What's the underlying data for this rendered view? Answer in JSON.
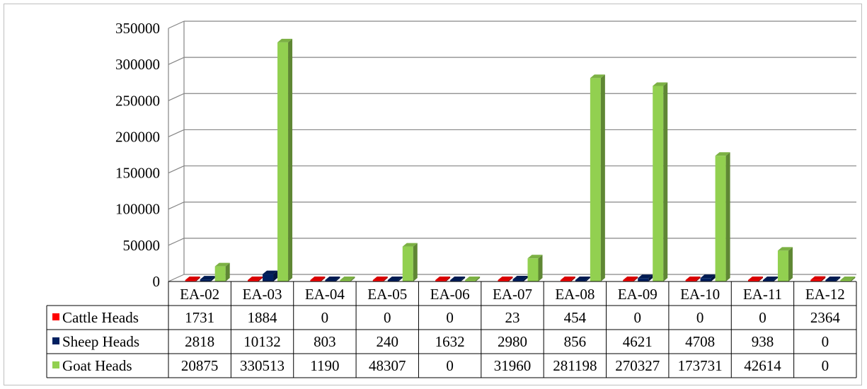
{
  "chart_data": {
    "type": "bar",
    "categories": [
      "EA-02",
      "EA-03",
      "EA-04",
      "EA-05",
      "EA-06",
      "EA-07",
      "EA-08",
      "EA-09",
      "EA-10",
      "EA-11",
      "EA-12"
    ],
    "series": [
      {
        "name": "Cattle Heads",
        "color": "#ff0000",
        "values": [
          1731,
          1884,
          0,
          0,
          0,
          23,
          454,
          0,
          0,
          0,
          2364
        ]
      },
      {
        "name": "Sheep Heads",
        "color": "#002060",
        "values": [
          2818,
          10132,
          803,
          240,
          1632,
          2980,
          856,
          4621,
          4708,
          938,
          0
        ]
      },
      {
        "name": "Goat Heads",
        "color": "#92d050",
        "values": [
          20875,
          330513,
          1190,
          48307,
          0,
          31960,
          281198,
          270327,
          173731,
          42614,
          0
        ]
      }
    ],
    "ylim": [
      0,
      350000
    ],
    "yticks": [
      "0",
      "50000",
      "100000",
      "150000",
      "200000",
      "250000",
      "300000",
      "350000"
    ],
    "grid": true,
    "legend": "data-table",
    "style": "3d-clustered-column"
  }
}
